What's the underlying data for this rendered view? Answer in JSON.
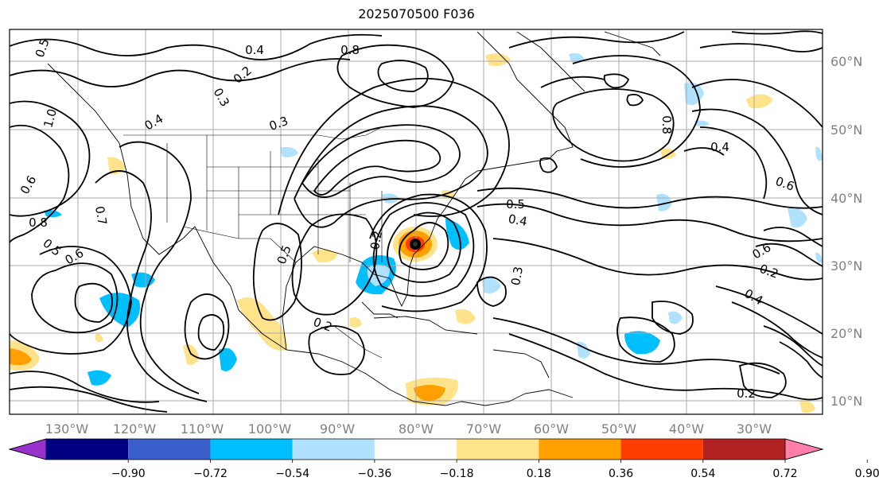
{
  "title": "2025070500 F036",
  "lon_labels": [
    "130°W",
    "120°W",
    "110°W",
    "100°W",
    "90°W",
    "80°W",
    "70°W",
    "60°W",
    "50°W",
    "40°W",
    "30°W"
  ],
  "lat_labels": [
    "60°N",
    "50°N",
    "40°N",
    "30°N",
    "20°N",
    "10°N"
  ],
  "colorbar": {
    "ticks": [
      "−0.90",
      "−0.72",
      "−0.54",
      "−0.36",
      "−0.18",
      "0.18",
      "0.36",
      "0.54",
      "0.72",
      "0.90"
    ],
    "colors": [
      "#9932cc",
      "#000080",
      "#3a5fcd",
      "#00bfff",
      "#b0e2ff",
      "#ffffff",
      "#ffe38a",
      "#ff9f00",
      "#ff3c00",
      "#b22222",
      "#ff7faa"
    ]
  },
  "contour_labels": [
    "0.5",
    "0.4",
    "0.8",
    "1.0",
    "0.2",
    "0.3",
    "0.6",
    "0.7",
    "0.5",
    "0.6",
    "0.4",
    "0.2",
    "0.5",
    "0.8",
    "0.6",
    "0.4",
    "0.3",
    "0.8",
    "0.2",
    "0.6",
    "0.4",
    "0.5",
    "0.3",
    "0.2",
    "0.4",
    "0.2"
  ]
}
